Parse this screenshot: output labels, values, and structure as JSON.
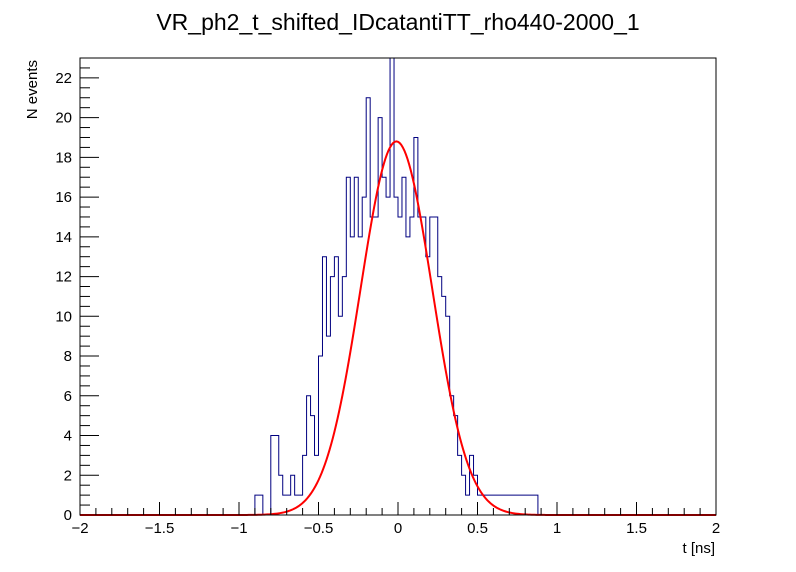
{
  "chart_data": {
    "type": "histogram",
    "title": "VR_ph2_t_shifted_IDcatantiTT_rho440-2000_1",
    "xlabel": "t [ns]",
    "ylabel": "N events",
    "xlim": [
      -2,
      2
    ],
    "ylim": [
      0,
      23
    ],
    "x_ticks": [
      -2,
      -1.5,
      -1,
      -0.5,
      0,
      0.5,
      1,
      1.5,
      2
    ],
    "x_tick_labels": [
      "−2",
      "−1.5",
      "−1",
      "−0.5",
      "0",
      "0.5",
      "1",
      "1.5",
      "2"
    ],
    "y_ticks": [
      0,
      2,
      4,
      6,
      8,
      10,
      12,
      14,
      16,
      18,
      20,
      22
    ],
    "y_tick_labels": [
      "0",
      "2",
      "4",
      "6",
      "8",
      "10",
      "12",
      "14",
      "16",
      "18",
      "20",
      "22"
    ],
    "grid": false,
    "series": [
      {
        "name": "histogram",
        "kind": "step",
        "color": "#000080",
        "bin_edges": [
          -2,
          -0.9,
          -0.85,
          -0.8,
          -0.75,
          -0.725,
          -0.7,
          -0.675,
          -0.65,
          -0.625,
          -0.6,
          -0.575,
          -0.55,
          -0.525,
          -0.5,
          -0.475,
          -0.45,
          -0.425,
          -0.4,
          -0.375,
          -0.35,
          -0.325,
          -0.3,
          -0.275,
          -0.25,
          -0.225,
          -0.2,
          -0.175,
          -0.15,
          -0.125,
          -0.1,
          -0.075,
          -0.05,
          -0.025,
          0,
          0.025,
          0.05,
          0.075,
          0.1,
          0.125,
          0.15,
          0.175,
          0.2,
          0.225,
          0.25,
          0.275,
          0.3,
          0.325,
          0.35,
          0.375,
          0.4,
          0.425,
          0.45,
          0.475,
          0.5,
          0.525,
          0.55,
          0.575,
          0.6,
          0.625,
          0.65,
          0.7,
          0.75,
          0.8,
          0.85,
          0.88,
          2
        ],
        "counts": [
          0,
          1,
          0,
          4,
          2,
          1,
          1,
          2,
          1,
          1,
          3,
          6,
          5,
          3,
          8,
          13,
          9,
          12,
          13,
          10,
          12,
          17,
          14,
          17,
          14,
          16,
          21,
          15,
          15,
          20,
          17,
          16,
          23,
          16,
          15,
          17,
          14,
          15,
          19,
          15,
          15,
          13,
          15,
          15,
          12,
          11,
          10,
          6,
          5,
          3,
          2,
          1,
          3,
          2,
          1,
          1,
          1,
          1,
          1,
          1,
          1,
          1,
          1,
          1,
          1,
          0
        ]
      },
      {
        "name": "gaussian fit",
        "kind": "curve",
        "color": "#ff0000",
        "amplitude": 18.8,
        "mean": -0.01,
        "sigma": 0.225
      }
    ]
  }
}
